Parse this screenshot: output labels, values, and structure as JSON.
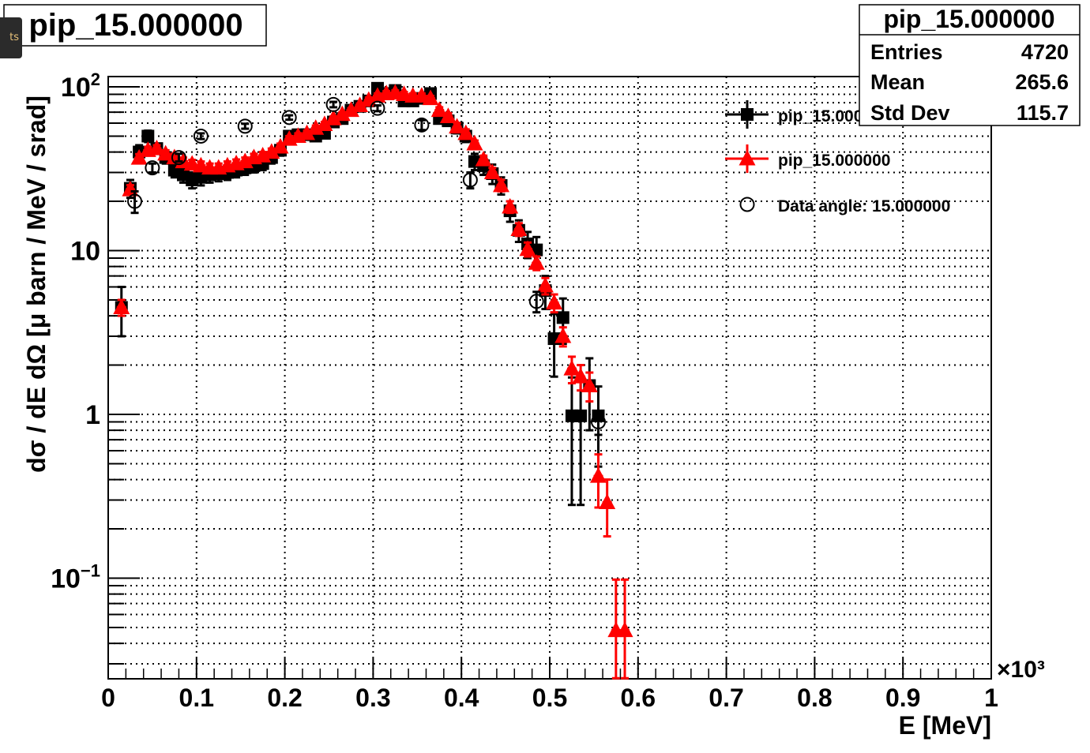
{
  "side_tab": {
    "label": "ts"
  },
  "chart_data": {
    "type": "scatter",
    "title": "pip_15.000000",
    "xlabel": "E [MeV]",
    "x_multiplier": "×10³",
    "ylabel": "dσ / dE dΩ [μ barn / MeV / srad]",
    "xlim": [
      0,
      1
    ],
    "ylim": [
      0.0245,
      115
    ],
    "yscale": "log",
    "grid": true,
    "x_ticks": [
      "0",
      "0.1",
      "0.2",
      "0.3",
      "0.4",
      "0.5",
      "0.6",
      "0.7",
      "0.8",
      "0.9",
      "1"
    ],
    "y_ticks": [
      {
        "value": 100,
        "base": "10",
        "exp": "2"
      },
      {
        "value": 10,
        "base": "10",
        "exp": ""
      },
      {
        "value": 1,
        "base": "1",
        "exp": ""
      },
      {
        "value": 0.1,
        "base": "10",
        "exp": "−1"
      }
    ],
    "legend_placement": "top-right",
    "legend": [
      {
        "label": "pip_15.000000",
        "marker": "square",
        "color": "#000000"
      },
      {
        "label": "pip_15.000000",
        "marker": "triangle",
        "color": "#ff0000"
      },
      {
        "label": "Data angle: 15.000000",
        "marker": "open-circle",
        "color": "#000000"
      }
    ],
    "series": [
      {
        "name": "pip_15.000000",
        "marker": "square",
        "color": "#000000",
        "points": [
          [
            0.015,
            4.5,
            1.5
          ],
          [
            0.025,
            24,
            3
          ],
          [
            0.035,
            40,
            4
          ],
          [
            0.045,
            50,
            4
          ],
          [
            0.055,
            42,
            3
          ],
          [
            0.065,
            37,
            3
          ],
          [
            0.075,
            31,
            3
          ],
          [
            0.085,
            29,
            3
          ],
          [
            0.095,
            27,
            3
          ],
          [
            0.105,
            28,
            3
          ],
          [
            0.115,
            29,
            3
          ],
          [
            0.125,
            29.5,
            3
          ],
          [
            0.135,
            30,
            3
          ],
          [
            0.145,
            31,
            3
          ],
          [
            0.155,
            32,
            3
          ],
          [
            0.165,
            33,
            3
          ],
          [
            0.175,
            34,
            3
          ],
          [
            0.185,
            37,
            3
          ],
          [
            0.195,
            41,
            3
          ],
          [
            0.205,
            50,
            3
          ],
          [
            0.215,
            51,
            3
          ],
          [
            0.225,
            51,
            3
          ],
          [
            0.235,
            50,
            3
          ],
          [
            0.245,
            52,
            3
          ],
          [
            0.255,
            61,
            3
          ],
          [
            0.265,
            64,
            3
          ],
          [
            0.275,
            72,
            3
          ],
          [
            0.285,
            76,
            3
          ],
          [
            0.295,
            82,
            3
          ],
          [
            0.305,
            98,
            4
          ],
          [
            0.315,
            91,
            4
          ],
          [
            0.325,
            95,
            4
          ],
          [
            0.335,
            82,
            4
          ],
          [
            0.345,
            82,
            4
          ],
          [
            0.355,
            85,
            4
          ],
          [
            0.365,
            91,
            4
          ],
          [
            0.375,
            64,
            4
          ],
          [
            0.385,
            62,
            4
          ],
          [
            0.395,
            56,
            4
          ],
          [
            0.405,
            50,
            4
          ],
          [
            0.415,
            35,
            4
          ],
          [
            0.425,
            33,
            4
          ],
          [
            0.435,
            29.5,
            4
          ],
          [
            0.445,
            25,
            3
          ],
          [
            0.455,
            17.5,
            2.5
          ],
          [
            0.465,
            13.3,
            2
          ],
          [
            0.475,
            11,
            2
          ],
          [
            0.485,
            10.1,
            2
          ],
          [
            0.495,
            5.7,
            1.3
          ],
          [
            0.505,
            2.9,
            1.2
          ],
          [
            0.515,
            3.9,
            1.2
          ],
          [
            0.525,
            0.98,
            0.7
          ],
          [
            0.535,
            0.98,
            0.7
          ],
          [
            0.545,
            1.5,
            0.7
          ],
          [
            0.555,
            0.98,
            0.5
          ]
        ]
      },
      {
        "name": "pip_15.000000",
        "marker": "triangle",
        "color": "#ff0000",
        "points": [
          [
            0.015,
            4.5,
            0.5
          ],
          [
            0.025,
            23.6,
            1.5
          ],
          [
            0.035,
            36.8,
            2
          ],
          [
            0.045,
            41,
            2
          ],
          [
            0.055,
            42,
            2
          ],
          [
            0.065,
            39,
            2
          ],
          [
            0.075,
            37,
            2
          ],
          [
            0.085,
            35,
            2
          ],
          [
            0.095,
            33.8,
            2
          ],
          [
            0.105,
            33,
            2
          ],
          [
            0.115,
            32,
            2
          ],
          [
            0.125,
            32,
            2
          ],
          [
            0.135,
            33,
            2
          ],
          [
            0.145,
            34,
            2
          ],
          [
            0.155,
            35,
            2
          ],
          [
            0.165,
            37,
            2
          ],
          [
            0.175,
            38,
            2
          ],
          [
            0.185,
            40,
            2
          ],
          [
            0.195,
            43,
            2
          ],
          [
            0.205,
            48,
            2
          ],
          [
            0.215,
            50,
            2
          ],
          [
            0.225,
            52,
            2
          ],
          [
            0.235,
            56,
            2
          ],
          [
            0.245,
            59,
            2
          ],
          [
            0.255,
            64,
            2
          ],
          [
            0.265,
            68,
            2
          ],
          [
            0.275,
            72,
            2
          ],
          [
            0.285,
            77,
            2
          ],
          [
            0.295,
            83,
            3
          ],
          [
            0.305,
            88,
            3
          ],
          [
            0.315,
            91,
            3
          ],
          [
            0.325,
            92,
            3
          ],
          [
            0.335,
            90,
            3
          ],
          [
            0.345,
            88,
            3
          ],
          [
            0.355,
            88,
            3
          ],
          [
            0.365,
            85,
            3
          ],
          [
            0.375,
            72,
            3
          ],
          [
            0.385,
            66,
            3
          ],
          [
            0.395,
            57,
            3
          ],
          [
            0.405,
            52,
            3
          ],
          [
            0.415,
            45,
            2
          ],
          [
            0.425,
            36,
            2
          ],
          [
            0.435,
            30,
            2
          ],
          [
            0.445,
            25,
            2
          ],
          [
            0.455,
            18.5,
            1.5
          ],
          [
            0.465,
            13.5,
            1.2
          ],
          [
            0.475,
            10.2,
            1
          ],
          [
            0.485,
            8.4,
            0.8
          ],
          [
            0.495,
            6.1,
            0.7
          ],
          [
            0.505,
            4.8,
            0.6
          ],
          [
            0.515,
            3.0,
            0.4
          ],
          [
            0.525,
            1.9,
            0.35
          ],
          [
            0.535,
            1.7,
            0.3
          ],
          [
            0.545,
            1.5,
            0.3
          ],
          [
            0.555,
            0.42,
            0.15
          ],
          [
            0.565,
            0.29,
            0.11
          ],
          [
            0.575,
            0.048,
            0.05
          ],
          [
            0.585,
            0.048,
            0.05
          ]
        ]
      },
      {
        "name": "Data angle: 15.000000",
        "marker": "open-circle",
        "color": "#000000",
        "points": [
          [
            0.03,
            20,
            3
          ],
          [
            0.05,
            32,
            2
          ],
          [
            0.08,
            37,
            2
          ],
          [
            0.105,
            50,
            2
          ],
          [
            0.155,
            57.5,
            2
          ],
          [
            0.205,
            65,
            2
          ],
          [
            0.255,
            78,
            3
          ],
          [
            0.305,
            74,
            3
          ],
          [
            0.355,
            58.5,
            4
          ],
          [
            0.41,
            27,
            3
          ],
          [
            0.485,
            4.9,
            0.7
          ],
          [
            0.555,
            0.9,
            0.15
          ]
        ]
      }
    ]
  },
  "stats_box": {
    "title": "pip_15.000000",
    "rows": [
      {
        "label": "Entries",
        "value": "4720"
      },
      {
        "label": "Mean",
        "value": "265.6"
      },
      {
        "label": "Std Dev",
        "value": "115.7"
      }
    ]
  }
}
